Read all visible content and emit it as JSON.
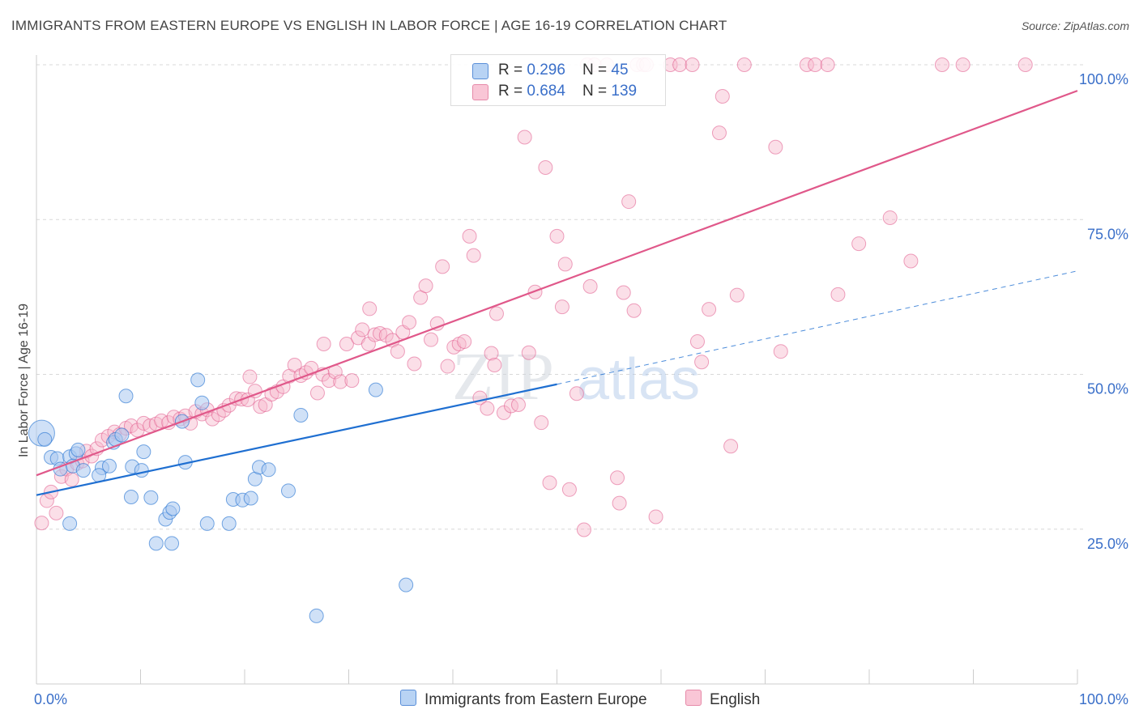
{
  "title": "IMMIGRANTS FROM EASTERN EUROPE VS ENGLISH IN LABOR FORCE | AGE 16-19 CORRELATION CHART",
  "source": "Source: ZipAtlas.com",
  "watermark": {
    "zip": "ZIP",
    "atlas": "atlas"
  },
  "colors": {
    "blue": "#1f6fd1",
    "blue_fill": "#a9c8f0",
    "pink": "#e0588a",
    "pink_fill": "#f6b8cc",
    "accent_text": "#3a6fc9"
  },
  "legend_top": [
    {
      "series": "blue",
      "r_label": "R = ",
      "r_value": "0.296",
      "n_label": "N = ",
      "n_value": "45"
    },
    {
      "series": "pink",
      "r_label": "R = ",
      "r_value": "0.684",
      "n_label": "N = ",
      "n_value": "139"
    }
  ],
  "legend_bottom": [
    "Immigrants from Eastern Europe",
    "English"
  ],
  "chart_data": {
    "type": "scatter",
    "title": "IMMIGRANTS FROM EASTERN EUROPE VS ENGLISH IN LABOR FORCE | AGE 16-19 CORRELATION CHART",
    "xlabel": "",
    "ylabel": "In Labor Force | Age 16-19",
    "xlim": [
      0,
      100
    ],
    "ylim": [
      0,
      100
    ],
    "x_tick_labels": [
      "0.0%",
      "100.0%"
    ],
    "y_ticks": [
      25,
      50,
      75,
      100
    ],
    "y_tick_labels": [
      "25.0%",
      "50.0%",
      "75.0%",
      "100.0%"
    ],
    "series": [
      {
        "name": "Immigrants from Eastern Europe",
        "color": "blue",
        "R": 0.296,
        "N": 45,
        "trend": {
          "x0": 0,
          "y0": 30.5,
          "x1": 50,
          "y1": 48.4,
          "x_extend": 100,
          "y_extend": 66.7
        },
        "points": [
          [
            0.5,
            40.5,
            "big"
          ],
          [
            0.8,
            39.5
          ],
          [
            1.4,
            36.6
          ],
          [
            2.0,
            36.4
          ],
          [
            3.2,
            36.7
          ],
          [
            3.8,
            37.2
          ],
          [
            2.3,
            34.7
          ],
          [
            3.5,
            35.2
          ],
          [
            4.5,
            34.5
          ],
          [
            6.3,
            34.9
          ],
          [
            7.0,
            35.2
          ],
          [
            6.0,
            33.7
          ],
          [
            7.4,
            39.0
          ],
          [
            7.6,
            39.5
          ],
          [
            8.2,
            40.2
          ],
          [
            8.6,
            46.5
          ],
          [
            9.2,
            35.1
          ],
          [
            10.1,
            34.5
          ],
          [
            10.3,
            37.5
          ],
          [
            11.0,
            30.1
          ],
          [
            9.1,
            30.2
          ],
          [
            12.4,
            26.6
          ],
          [
            12.8,
            27.7
          ],
          [
            13.1,
            28.3
          ],
          [
            11.5,
            22.7
          ],
          [
            13.0,
            22.7
          ],
          [
            14.0,
            42.4
          ],
          [
            14.3,
            35.8
          ],
          [
            15.5,
            49.1
          ],
          [
            15.9,
            45.4
          ],
          [
            16.4,
            25.9
          ],
          [
            18.5,
            25.9
          ],
          [
            18.9,
            29.8
          ],
          [
            19.8,
            29.7
          ],
          [
            20.6,
            30.0
          ],
          [
            21.0,
            33.1
          ],
          [
            21.4,
            35.0
          ],
          [
            22.3,
            34.6
          ],
          [
            24.2,
            31.2
          ],
          [
            25.4,
            43.4
          ],
          [
            26.9,
            11.0
          ],
          [
            32.6,
            47.5
          ],
          [
            35.5,
            16.0
          ],
          [
            3.2,
            25.9
          ],
          [
            4.0,
            37.8
          ]
        ]
      },
      {
        "name": "English",
        "color": "pink",
        "R": 0.684,
        "N": 139,
        "trend": {
          "x0": 0,
          "y0": 33.7,
          "x1": 100,
          "y1": 95.8
        },
        "points": [
          [
            0.5,
            26.0
          ],
          [
            1.0,
            29.6
          ],
          [
            1.4,
            31.0
          ],
          [
            1.9,
            27.6
          ],
          [
            2.4,
            33.5
          ],
          [
            2.9,
            34.7
          ],
          [
            3.4,
            33.0
          ],
          [
            3.9,
            35.6
          ],
          [
            4.4,
            36.0
          ],
          [
            4.8,
            37.6
          ],
          [
            5.3,
            36.8
          ],
          [
            5.8,
            38.0
          ],
          [
            6.3,
            39.4
          ],
          [
            6.9,
            40.0
          ],
          [
            7.5,
            40.7
          ],
          [
            8.0,
            40.3
          ],
          [
            8.6,
            41.3
          ],
          [
            9.1,
            41.7
          ],
          [
            9.7,
            41.0
          ],
          [
            10.3,
            42.1
          ],
          [
            10.9,
            41.7
          ],
          [
            11.5,
            42.0
          ],
          [
            12.0,
            42.5
          ],
          [
            12.7,
            42.2
          ],
          [
            13.2,
            43.1
          ],
          [
            13.8,
            42.8
          ],
          [
            14.3,
            43.3
          ],
          [
            14.8,
            42.1
          ],
          [
            15.3,
            44.0
          ],
          [
            15.9,
            43.6
          ],
          [
            16.4,
            44.3
          ],
          [
            16.9,
            42.8
          ],
          [
            17.5,
            43.5
          ],
          [
            18.0,
            44.2
          ],
          [
            18.5,
            45.0
          ],
          [
            19.2,
            46.1
          ],
          [
            19.7,
            46.0
          ],
          [
            20.3,
            45.9
          ],
          [
            20.5,
            49.6
          ],
          [
            21.0,
            47.3
          ],
          [
            21.5,
            44.8
          ],
          [
            22.0,
            45.1
          ],
          [
            22.6,
            46.8
          ],
          [
            23.1,
            47.2
          ],
          [
            23.7,
            48.0
          ],
          [
            24.3,
            49.7
          ],
          [
            24.8,
            51.5
          ],
          [
            25.4,
            49.8
          ],
          [
            25.9,
            50.3
          ],
          [
            26.4,
            51.0
          ],
          [
            27.0,
            47.0
          ],
          [
            27.5,
            50.0
          ],
          [
            27.6,
            54.9
          ],
          [
            28.1,
            49.0
          ],
          [
            28.7,
            50.4
          ],
          [
            29.2,
            48.8
          ],
          [
            29.8,
            54.9
          ],
          [
            30.3,
            49.0
          ],
          [
            30.9,
            55.9
          ],
          [
            31.3,
            57.2
          ],
          [
            31.9,
            54.9
          ],
          [
            32.0,
            60.6
          ],
          [
            32.5,
            56.4
          ],
          [
            33.0,
            56.6
          ],
          [
            33.6,
            56.3
          ],
          [
            34.2,
            55.5
          ],
          [
            34.7,
            53.7
          ],
          [
            35.2,
            56.8
          ],
          [
            35.8,
            58.4
          ],
          [
            36.3,
            51.7
          ],
          [
            36.9,
            62.4
          ],
          [
            37.4,
            64.3
          ],
          [
            37.9,
            55.6
          ],
          [
            38.5,
            58.2
          ],
          [
            39.0,
            67.4
          ],
          [
            39.5,
            51.3
          ],
          [
            40.1,
            54.4
          ],
          [
            40.6,
            54.9
          ],
          [
            41.1,
            55.3
          ],
          [
            41.6,
            72.3
          ],
          [
            42.0,
            69.2
          ],
          [
            42.6,
            46.2
          ],
          [
            43.3,
            44.5
          ],
          [
            43.7,
            53.4
          ],
          [
            44.0,
            51.5
          ],
          [
            44.2,
            59.8
          ],
          [
            44.9,
            43.8
          ],
          [
            45.6,
            44.9
          ],
          [
            46.3,
            45.1
          ],
          [
            46.9,
            88.3
          ],
          [
            47.3,
            53.5
          ],
          [
            47.9,
            63.3
          ],
          [
            48.5,
            42.2
          ],
          [
            48.9,
            83.4
          ],
          [
            49.3,
            32.5
          ],
          [
            50.0,
            72.3
          ],
          [
            50.5,
            60.9
          ],
          [
            50.8,
            67.8
          ],
          [
            51.2,
            31.4
          ],
          [
            51.9,
            46.9
          ],
          [
            52.6,
            24.9
          ],
          [
            52.9,
            100
          ],
          [
            53.2,
            64.2
          ],
          [
            53.6,
            100
          ],
          [
            54.8,
            100
          ],
          [
            55.8,
            33.3
          ],
          [
            56.0,
            29.2
          ],
          [
            56.4,
            63.2
          ],
          [
            56.9,
            77.9
          ],
          [
            57.4,
            60.3
          ],
          [
            57.7,
            100
          ],
          [
            58.3,
            100
          ],
          [
            58.6,
            100
          ],
          [
            59.5,
            27.0
          ],
          [
            60.9,
            100
          ],
          [
            61.8,
            100
          ],
          [
            63.0,
            100
          ],
          [
            63.5,
            55.3
          ],
          [
            63.9,
            52.0
          ],
          [
            64.6,
            60.5
          ],
          [
            65.9,
            94.9
          ],
          [
            65.6,
            89.0
          ],
          [
            66.7,
            38.4
          ],
          [
            67.3,
            62.8
          ],
          [
            68.0,
            100
          ],
          [
            71.0,
            86.7
          ],
          [
            71.5,
            53.7
          ],
          [
            74.0,
            100
          ],
          [
            74.8,
            100
          ],
          [
            76.0,
            100
          ],
          [
            77.0,
            62.9
          ],
          [
            79.0,
            71.1
          ],
          [
            82.0,
            75.3
          ],
          [
            84.0,
            68.3
          ],
          [
            87.0,
            100
          ],
          [
            89.0,
            100
          ],
          [
            95.0,
            100
          ]
        ]
      }
    ]
  }
}
